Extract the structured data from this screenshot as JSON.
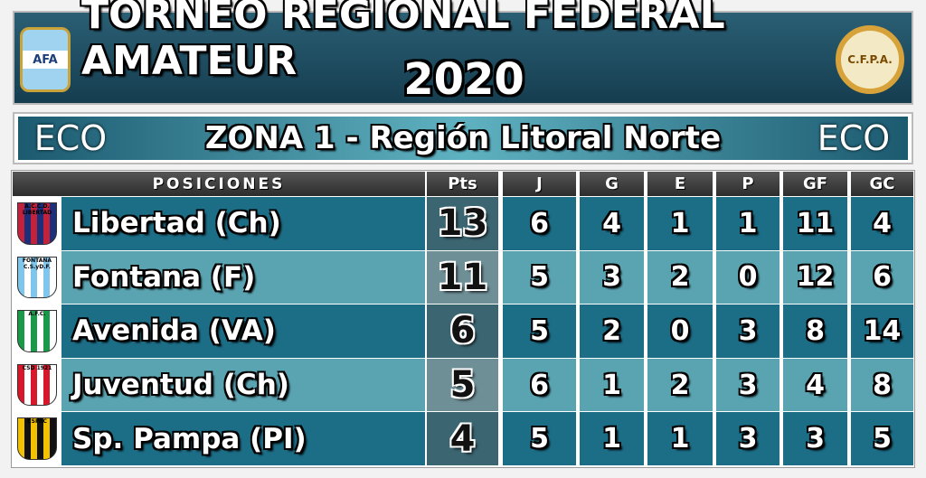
{
  "header": {
    "title": "TORNEO REGIONAL FEDERAL AMATEUR",
    "year": "2020",
    "left_logo": "AFA",
    "right_logo": "C.F.P.A."
  },
  "zone": {
    "title": "ZONA 1 - Región Litoral Norte",
    "left_sponsor": "ECO",
    "right_sponsor": "ECO"
  },
  "table": {
    "columns": [
      "POSICIONES",
      "Pts",
      "J",
      "G",
      "E",
      "P",
      "GF",
      "GC"
    ],
    "crests": [
      "A.C.C.D. LIBERTAD",
      "FONTANA C.S.yD.F.",
      "A.F.C.",
      "CSD 1921",
      "CSPAC"
    ],
    "rows": [
      [
        "Libertad (Ch)",
        13,
        6,
        4,
        1,
        1,
        11,
        4
      ],
      [
        "Fontana (F)",
        11,
        5,
        3,
        2,
        0,
        12,
        6
      ],
      [
        "Avenida (VA)",
        6,
        5,
        2,
        0,
        3,
        8,
        14
      ],
      [
        "Juventud (Ch)",
        5,
        6,
        1,
        2,
        3,
        4,
        8
      ],
      [
        "Sp. Pampa (PI)",
        4,
        5,
        1,
        1,
        3,
        3,
        5
      ]
    ]
  }
}
